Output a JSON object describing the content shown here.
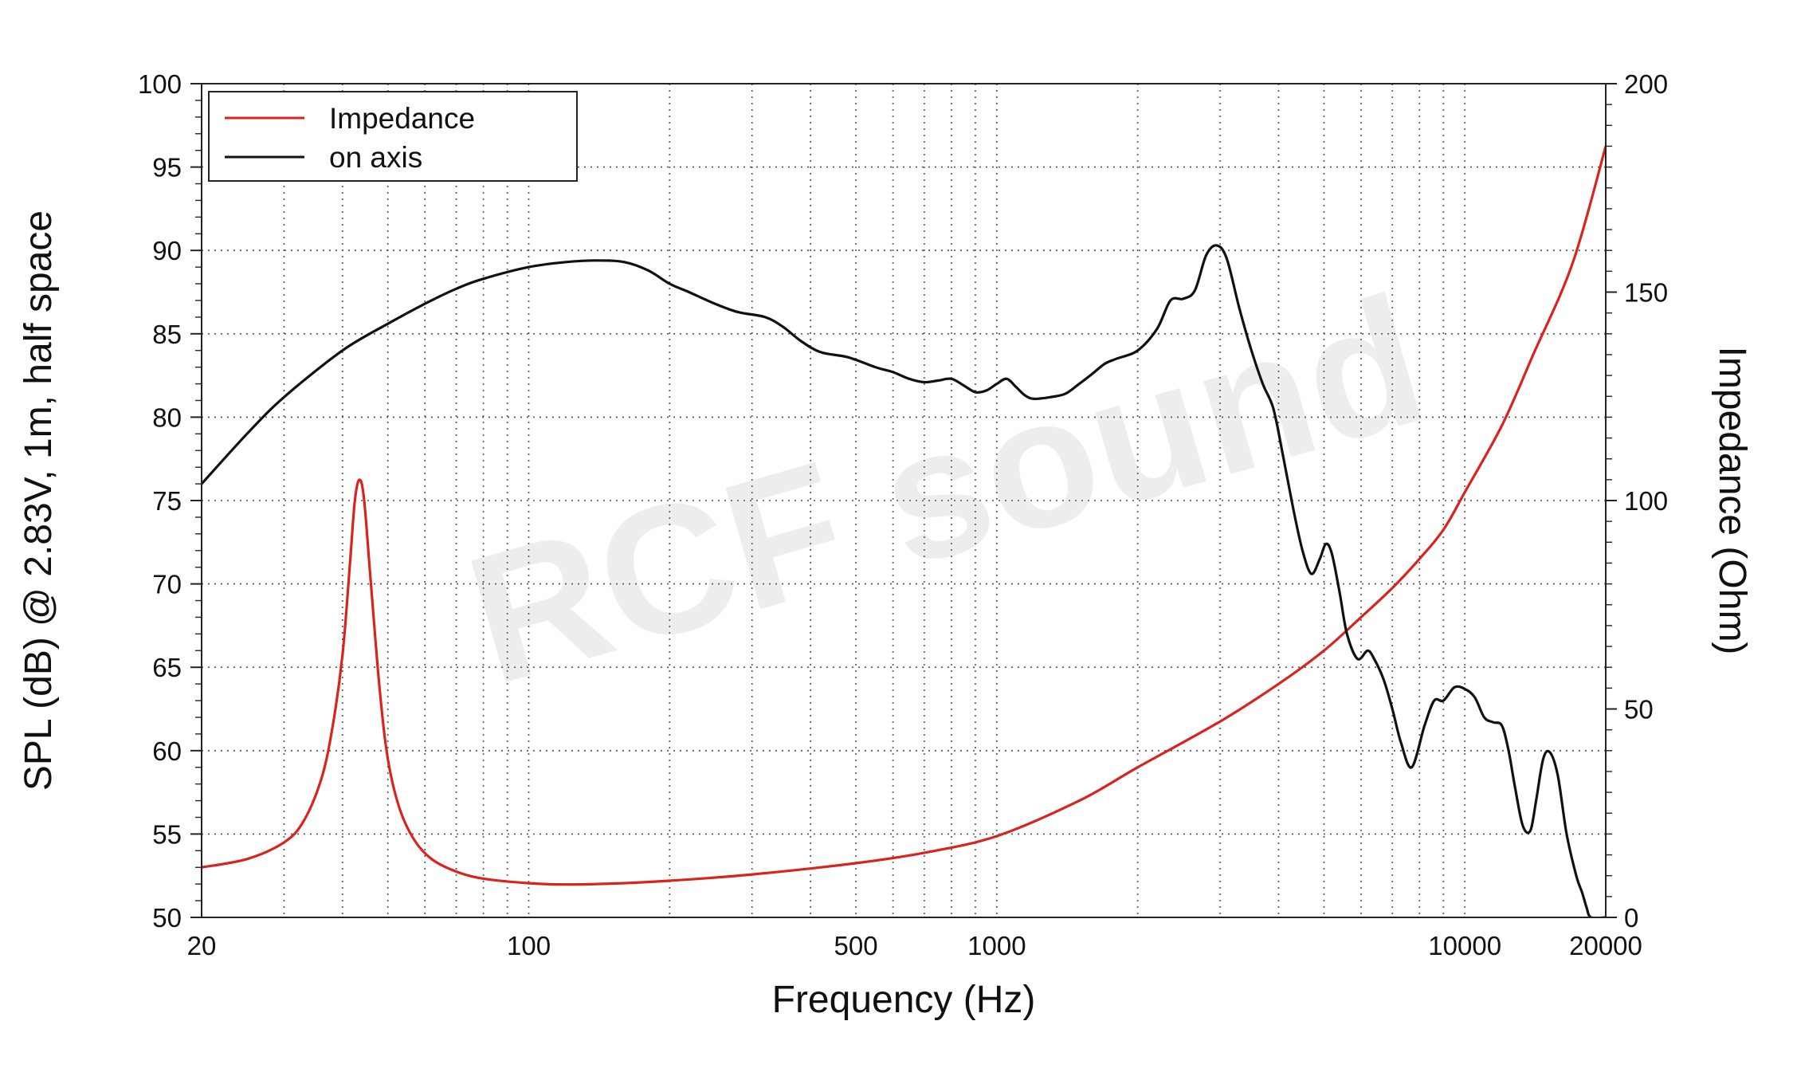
{
  "chart_data": {
    "type": "line",
    "xlabel": "Frequency (Hz)",
    "ylabel": "SPL (dB) @ 2.83V, 1m, half space",
    "y2label": "Impedance (Ohm)",
    "x_scale": "log",
    "xlim": [
      20,
      20000
    ],
    "ylim": [
      50,
      100
    ],
    "y2lim": [
      0,
      200
    ],
    "x_ticks": [
      20,
      100,
      500,
      1000,
      10000,
      20000
    ],
    "x_tick_labels": [
      "20",
      "100",
      "500",
      "1000",
      "10000",
      "20000"
    ],
    "y_ticks": [
      50,
      55,
      60,
      65,
      70,
      75,
      80,
      85,
      90,
      95,
      100
    ],
    "y_tick_labels": [
      "50",
      "55",
      "60",
      "65",
      "70",
      "75",
      "80",
      "85",
      "90",
      "95",
      "100"
    ],
    "y2_ticks": [
      0,
      50,
      100,
      150,
      200
    ],
    "y2_tick_labels": [
      "0",
      "50",
      "100",
      "150",
      "200"
    ],
    "grid": true,
    "legend_position": "top-left",
    "watermark": "RCF sound",
    "colors": {
      "impedance": "#d8241f",
      "on_axis": "#111111"
    },
    "series": [
      {
        "name": "Impedance",
        "axis": "right",
        "color": "#d8241f",
        "points": [
          [
            20,
            12
          ],
          [
            25,
            14
          ],
          [
            30,
            18
          ],
          [
            33,
            23
          ],
          [
            36,
            33
          ],
          [
            38,
            45
          ],
          [
            40,
            63
          ],
          [
            41.5,
            85
          ],
          [
            42.5,
            100
          ],
          [
            43.5,
            105
          ],
          [
            44.5,
            100
          ],
          [
            46,
            80
          ],
          [
            48,
            55
          ],
          [
            50,
            38
          ],
          [
            53,
            26
          ],
          [
            57,
            18.5
          ],
          [
            62,
            14
          ],
          [
            70,
            11
          ],
          [
            80,
            9.3
          ],
          [
            100,
            8.2
          ],
          [
            120,
            7.9
          ],
          [
            150,
            8.1
          ],
          [
            200,
            8.8
          ],
          [
            300,
            10.3
          ],
          [
            500,
            13
          ],
          [
            700,
            15.5
          ],
          [
            1000,
            19.5
          ],
          [
            1500,
            28
          ],
          [
            2000,
            36
          ],
          [
            3000,
            47
          ],
          [
            4000,
            56
          ],
          [
            5000,
            64
          ],
          [
            6000,
            72
          ],
          [
            7000,
            79
          ],
          [
            8000,
            86
          ],
          [
            9000,
            93
          ],
          [
            10000,
            102
          ],
          [
            12000,
            118
          ],
          [
            14000,
            135
          ],
          [
            17000,
            157
          ],
          [
            20000,
            185
          ]
        ]
      },
      {
        "name": "on axis",
        "axis": "left",
        "color": "#111111",
        "points": [
          [
            20,
            76
          ],
          [
            25,
            79
          ],
          [
            30,
            81.2
          ],
          [
            40,
            84
          ],
          [
            50,
            85.6
          ],
          [
            60,
            86.8
          ],
          [
            70,
            87.7
          ],
          [
            80,
            88.3
          ],
          [
            100,
            89
          ],
          [
            120,
            89.3
          ],
          [
            140,
            89.4
          ],
          [
            160,
            89.3
          ],
          [
            180,
            88.8
          ],
          [
            200,
            88
          ],
          [
            220,
            87.5
          ],
          [
            250,
            86.8
          ],
          [
            280,
            86.3
          ],
          [
            320,
            86
          ],
          [
            350,
            85.4
          ],
          [
            380,
            84.6
          ],
          [
            420,
            83.9
          ],
          [
            480,
            83.6
          ],
          [
            550,
            83
          ],
          [
            600,
            82.7
          ],
          [
            650,
            82.3
          ],
          [
            700,
            82.1
          ],
          [
            750,
            82.2
          ],
          [
            800,
            82.3
          ],
          [
            850,
            81.9
          ],
          [
            900,
            81.5
          ],
          [
            950,
            81.6
          ],
          [
            1000,
            82
          ],
          [
            1050,
            82.3
          ],
          [
            1100,
            81.8
          ],
          [
            1150,
            81.3
          ],
          [
            1200,
            81.1
          ],
          [
            1300,
            81.2
          ],
          [
            1400,
            81.4
          ],
          [
            1500,
            82
          ],
          [
            1600,
            82.6
          ],
          [
            1700,
            83.2
          ],
          [
            1800,
            83.5
          ],
          [
            2000,
            84
          ],
          [
            2200,
            85.3
          ],
          [
            2350,
            87
          ],
          [
            2500,
            87.1
          ],
          [
            2650,
            87.6
          ],
          [
            2800,
            89.7
          ],
          [
            2950,
            90.3
          ],
          [
            3100,
            89.5
          ],
          [
            3300,
            86.5
          ],
          [
            3500,
            84
          ],
          [
            3700,
            82
          ],
          [
            3900,
            80.5
          ],
          [
            4100,
            77.5
          ],
          [
            4300,
            74.5
          ],
          [
            4500,
            72
          ],
          [
            4700,
            70.6
          ],
          [
            4900,
            71.5
          ],
          [
            5050,
            72.4
          ],
          [
            5200,
            71.8
          ],
          [
            5400,
            69.5
          ],
          [
            5600,
            67
          ],
          [
            5900,
            65.5
          ],
          [
            6200,
            66
          ],
          [
            6400,
            65.5
          ],
          [
            6700,
            64.3
          ],
          [
            7000,
            62.5
          ],
          [
            7300,
            60.5
          ],
          [
            7700,
            59
          ],
          [
            8200,
            61.5
          ],
          [
            8600,
            63
          ],
          [
            9000,
            63
          ],
          [
            9500,
            63.8
          ],
          [
            10000,
            63.7
          ],
          [
            10500,
            63.2
          ],
          [
            11000,
            62
          ],
          [
            11500,
            61.7
          ],
          [
            12000,
            61.5
          ],
          [
            12400,
            60
          ],
          [
            12800,
            57.8
          ],
          [
            13300,
            55.5
          ],
          [
            13800,
            55.2
          ],
          [
            14200,
            57
          ],
          [
            14700,
            59.5
          ],
          [
            15200,
            59.9
          ],
          [
            15800,
            58.5
          ],
          [
            16500,
            55
          ],
          [
            17300,
            52.5
          ],
          [
            17800,
            51.5
          ],
          [
            18200,
            50.6
          ],
          [
            18600,
            50
          ],
          [
            20000,
            50
          ]
        ]
      }
    ]
  }
}
